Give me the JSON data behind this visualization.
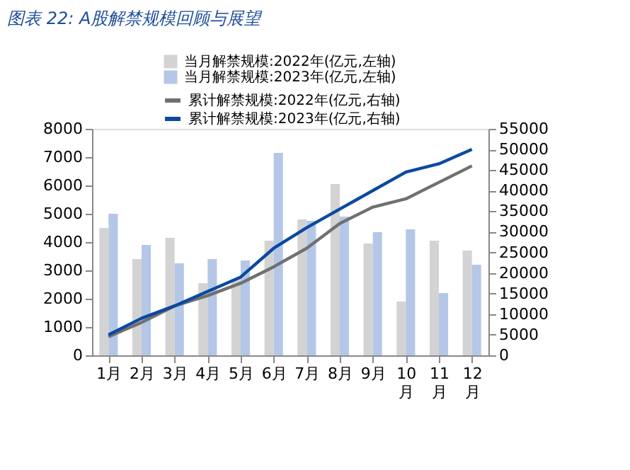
{
  "chart_data": {
    "type": "bar",
    "title": "图表 22: A股解禁规模回顾与展望",
    "categories": [
      "1月",
      "2月",
      "3月",
      "4月",
      "5月",
      "6月",
      "7月",
      "8月",
      "9月",
      "10月",
      "11月",
      "12月"
    ],
    "series": [
      {
        "name": "当月解禁规模:2022年(亿元,左轴)",
        "color": "#d3d3d3",
        "values": [
          4500,
          3400,
          4150,
          2550,
          2700,
          4050,
          4800,
          6050,
          3950,
          1900,
          4050,
          3700
        ]
      },
      {
        "name": "当月解禁规模:2023年(亿元,左轴)",
        "color": "#b4c7e7",
        "values": [
          5000,
          3900,
          3250,
          3400,
          3350,
          7150,
          4750,
          4900,
          4350,
          4450,
          2200,
          3200
        ]
      },
      {
        "name": "累计解禁规模:2022年(亿元,右轴)",
        "type": "line",
        "axis": "y2",
        "color": "#707070",
        "values": [
          4500,
          8000,
          12000,
          14500,
          17500,
          21500,
          26000,
          32000,
          36000,
          38000,
          42000,
          46000
        ]
      },
      {
        "name": "累计解禁规模:2023年(亿元,右轴)",
        "type": "line",
        "axis": "y2",
        "color": "#0a4a9e",
        "values": [
          5000,
          9000,
          12000,
          15500,
          19000,
          26000,
          31000,
          35500,
          40000,
          44500,
          46500,
          50000
        ]
      }
    ],
    "ylim": [
      0,
      8000
    ],
    "yticks": [
      0,
      1000,
      2000,
      3000,
      4000,
      5000,
      6000,
      7000,
      8000
    ],
    "y2lim": [
      0,
      55000
    ],
    "y2ticks": [
      0,
      5000,
      10000,
      15000,
      20000,
      25000,
      30000,
      35000,
      40000,
      45000,
      50000,
      55000
    ],
    "legend": "top",
    "grid": false,
    "marker": "none",
    "line_style": "solid"
  }
}
